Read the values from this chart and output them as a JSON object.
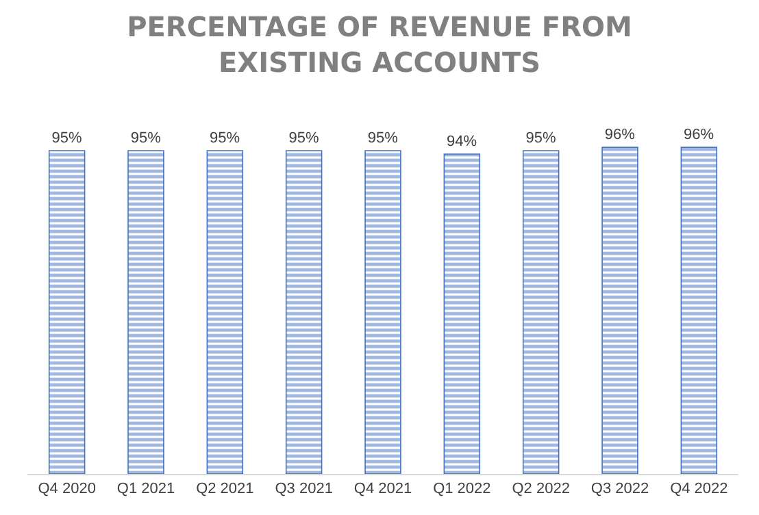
{
  "chart_data": {
    "type": "bar",
    "title": "PERCENTAGE OF REVENUE FROM\nEXISTING ACCOUNTS",
    "categories": [
      "Q4 2020",
      "Q1 2021",
      "Q2 2021",
      "Q3 2021",
      "Q4 2021",
      "Q1 2022",
      "Q2 2022",
      "Q3 2022",
      "Q4 2022"
    ],
    "values": [
      95,
      95,
      95,
      95,
      95,
      94,
      95,
      96,
      96
    ],
    "value_labels": [
      "95%",
      "95%",
      "95%",
      "95%",
      "95%",
      "94%",
      "95%",
      "96%",
      "96%"
    ],
    "color": "#4472c4",
    "tick_labels": "x"
  }
}
